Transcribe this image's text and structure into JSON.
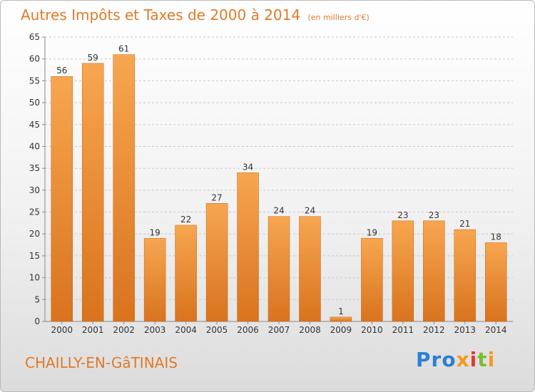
{
  "header": {
    "title": "Autres Impôts et Taxes de 2000 à 2014",
    "subtitle": "(en milliers d'€)"
  },
  "footer": {
    "town": "CHAILLY-EN-GâTINAIS",
    "logo": {
      "p1": "Pro",
      "p2": "x",
      "p3": "i",
      "p4": "t",
      "p5": "i"
    }
  },
  "colors": {
    "bar": "#f29433",
    "accent": "#e07a2a"
  },
  "chart_data": {
    "type": "bar",
    "title": "Autres Impôts et Taxes de 2000 à 2014",
    "xlabel": "",
    "ylabel": "",
    "categories": [
      "2000",
      "2001",
      "2002",
      "2003",
      "2004",
      "2005",
      "2006",
      "2007",
      "2008",
      "2009",
      "2010",
      "2011",
      "2012",
      "2013",
      "2014"
    ],
    "values": [
      56,
      59,
      61,
      19,
      22,
      27,
      34,
      24,
      24,
      1,
      19,
      23,
      23,
      21,
      18
    ],
    "ylim": [
      0,
      65
    ],
    "yticks": [
      0,
      5,
      10,
      15,
      20,
      25,
      30,
      35,
      40,
      45,
      50,
      55,
      60,
      65
    ],
    "grid": true,
    "legend": "none"
  }
}
